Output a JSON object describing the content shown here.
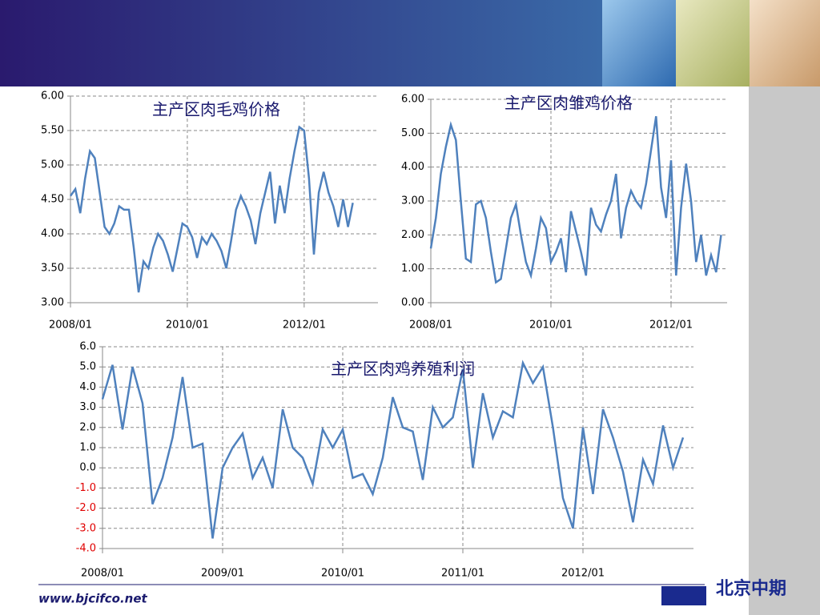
{
  "chart_data": [
    {
      "type": "line",
      "title": "主产区肉毛鸡价格",
      "categories": [
        "2008/01",
        "2008/02",
        "2008/03",
        "2008/04",
        "2008/05",
        "2008/06",
        "2008/07",
        "2008/08",
        "2008/09",
        "2008/10",
        "2008/11",
        "2008/12",
        "2009/01",
        "2009/02",
        "2009/03",
        "2009/04",
        "2009/05",
        "2009/06",
        "2009/07",
        "2009/08",
        "2009/09",
        "2009/10",
        "2009/11",
        "2009/12",
        "2010/01",
        "2010/02",
        "2010/03",
        "2010/04",
        "2010/05",
        "2010/06",
        "2010/07",
        "2010/08",
        "2010/09",
        "2010/10",
        "2010/11",
        "2010/12",
        "2011/01",
        "2011/02",
        "2011/03",
        "2011/04",
        "2011/05",
        "2011/06",
        "2011/07",
        "2011/08",
        "2011/09",
        "2011/10",
        "2011/11",
        "2011/12",
        "2012/01",
        "2012/02",
        "2012/03",
        "2012/04",
        "2012/05",
        "2012/06",
        "2012/07",
        "2012/08",
        "2012/09",
        "2012/10",
        "2012/11"
      ],
      "values": [
        4.55,
        4.65,
        4.3,
        4.8,
        5.2,
        5.1,
        4.6,
        4.1,
        4.0,
        4.15,
        4.4,
        4.35,
        4.35,
        3.8,
        3.15,
        3.6,
        3.5,
        3.8,
        4.0,
        3.9,
        3.7,
        3.45,
        3.8,
        4.15,
        4.1,
        3.95,
        3.65,
        3.95,
        3.85,
        4.0,
        3.9,
        3.75,
        3.5,
        3.9,
        4.35,
        4.55,
        4.4,
        4.2,
        3.85,
        4.3,
        4.6,
        4.9,
        4.15,
        4.7,
        4.3,
        4.8,
        5.2,
        5.55,
        5.5,
        4.8,
        3.7,
        4.6,
        4.9,
        4.6,
        4.4,
        4.1,
        4.5,
        4.1,
        4.45
      ],
      "color": "#4f81bd",
      "ylim": [
        3,
        6
      ],
      "yticks": [
        {
          "value": 3,
          "label": "3.00"
        },
        {
          "value": 3.5,
          "label": "3.50"
        },
        {
          "value": 4,
          "label": "4.00"
        },
        {
          "value": 4.5,
          "label": "4.50"
        },
        {
          "value": 5,
          "label": "5.00"
        },
        {
          "value": 5.5,
          "label": "5.50"
        },
        {
          "value": 6,
          "label": "6.00"
        }
      ],
      "xticks": [
        "2008/01",
        "2010/01",
        "2012/01"
      ],
      "grid": true
    },
    {
      "type": "line",
      "title": "主产区肉雏鸡价格",
      "categories": [
        "2008/01",
        "2008/02",
        "2008/03",
        "2008/04",
        "2008/05",
        "2008/06",
        "2008/07",
        "2008/08",
        "2008/09",
        "2008/10",
        "2008/11",
        "2008/12",
        "2009/01",
        "2009/02",
        "2009/03",
        "2009/04",
        "2009/05",
        "2009/06",
        "2009/07",
        "2009/08",
        "2009/09",
        "2009/10",
        "2009/11",
        "2009/12",
        "2010/01",
        "2010/02",
        "2010/03",
        "2010/04",
        "2010/05",
        "2010/06",
        "2010/07",
        "2010/08",
        "2010/09",
        "2010/10",
        "2010/11",
        "2010/12",
        "2011/01",
        "2011/02",
        "2011/03",
        "2011/04",
        "2011/05",
        "2011/06",
        "2011/07",
        "2011/08",
        "2011/09",
        "2011/10",
        "2011/11",
        "2011/12",
        "2012/01",
        "2012/02",
        "2012/03",
        "2012/04",
        "2012/05",
        "2012/06",
        "2012/07",
        "2012/08",
        "2012/09",
        "2012/10",
        "2012/11"
      ],
      "values": [
        1.6,
        2.5,
        3.8,
        4.6,
        5.25,
        4.8,
        3.0,
        1.3,
        1.2,
        2.9,
        3.0,
        2.5,
        1.5,
        0.6,
        0.7,
        1.6,
        2.5,
        2.9,
        2.0,
        1.2,
        0.8,
        1.6,
        2.5,
        2.2,
        1.2,
        1.5,
        1.9,
        0.9,
        2.7,
        2.1,
        1.5,
        0.8,
        2.8,
        2.3,
        2.1,
        2.6,
        3.0,
        3.8,
        1.9,
        2.8,
        3.3,
        3.0,
        2.8,
        3.5,
        4.5,
        5.5,
        3.4,
        2.5,
        4.2,
        0.8,
        2.8,
        4.1,
        3.0,
        1.2,
        2.0,
        0.8,
        1.4,
        0.9,
        2.0
      ],
      "color": "#4f81bd",
      "ylim": [
        0,
        6
      ],
      "yticks": [
        {
          "value": 0,
          "label": "0.00"
        },
        {
          "value": 1,
          "label": "1.00"
        },
        {
          "value": 2,
          "label": "2.00"
        },
        {
          "value": 3,
          "label": "3.00"
        },
        {
          "value": 4,
          "label": "4.00"
        },
        {
          "value": 5,
          "label": "5.00"
        },
        {
          "value": 6,
          "label": "6.00"
        }
      ],
      "xticks": [
        "2008/01",
        "2010/01",
        "2012/01"
      ],
      "grid": true
    },
    {
      "type": "line",
      "title": "主产区肉鸡养殖利润",
      "categories": [
        "2008/01",
        "2008/02",
        "2008/03",
        "2008/04",
        "2008/05",
        "2008/06",
        "2008/07",
        "2008/08",
        "2008/09",
        "2008/10",
        "2008/11",
        "2008/12",
        "2009/01",
        "2009/02",
        "2009/03",
        "2009/04",
        "2009/05",
        "2009/06",
        "2009/07",
        "2009/08",
        "2009/09",
        "2009/10",
        "2009/11",
        "2009/12",
        "2010/01",
        "2010/02",
        "2010/03",
        "2010/04",
        "2010/05",
        "2010/06",
        "2010/07",
        "2010/08",
        "2010/09",
        "2010/10",
        "2010/11",
        "2010/12",
        "2011/01",
        "2011/02",
        "2011/03",
        "2011/04",
        "2011/05",
        "2011/06",
        "2011/07",
        "2011/08",
        "2011/09",
        "2011/10",
        "2011/11",
        "2011/12",
        "2012/01",
        "2012/02",
        "2012/03",
        "2012/04",
        "2012/05",
        "2012/06",
        "2012/07",
        "2012/08",
        "2012/09",
        "2012/10",
        "2012/11"
      ],
      "values": [
        3.4,
        5.1,
        1.9,
        5.0,
        3.2,
        -1.8,
        -0.5,
        1.5,
        4.5,
        1.0,
        1.2,
        -3.5,
        0.0,
        1.0,
        1.7,
        -0.5,
        0.5,
        -1.0,
        2.9,
        1.0,
        0.5,
        -0.8,
        1.9,
        1.0,
        1.9,
        -0.5,
        -0.3,
        -1.3,
        0.5,
        3.5,
        2.0,
        1.8,
        -0.6,
        3.0,
        2.0,
        2.5,
        4.9,
        0.0,
        3.7,
        1.5,
        2.8,
        2.5,
        5.2,
        4.2,
        5.0,
        2.0,
        -1.5,
        -3.0,
        2.0,
        -1.3,
        2.9,
        1.5,
        -0.2,
        -2.7,
        0.4,
        -0.8,
        2.1,
        0.0,
        1.5
      ],
      "color": "#4f81bd",
      "ylim": [
        -4,
        6
      ],
      "negative_tick_color": "#e00000",
      "yticks": [
        {
          "value": -4,
          "label": "-4.0"
        },
        {
          "value": -3,
          "label": "-3.0"
        },
        {
          "value": -2,
          "label": "-2.0"
        },
        {
          "value": -1,
          "label": "-1.0"
        },
        {
          "value": 0,
          "label": "0.0"
        },
        {
          "value": 1,
          "label": "1.0"
        },
        {
          "value": 2,
          "label": "2.0"
        },
        {
          "value": 3,
          "label": "3.0"
        },
        {
          "value": 4,
          "label": "4.0"
        },
        {
          "value": 5,
          "label": "5.0"
        },
        {
          "value": 6,
          "label": "6.0"
        }
      ],
      "xticks": [
        "2008/01",
        "2009/01",
        "2010/01",
        "2011/01",
        "2012/01"
      ],
      "grid": true
    }
  ],
  "footer": {
    "url": "www.bjcifco.net"
  },
  "logo": {
    "text": "北京中期"
  }
}
